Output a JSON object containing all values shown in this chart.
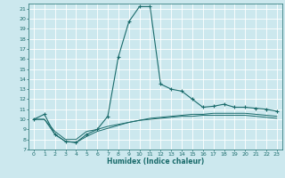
{
  "xlabel": "Humidex (Indice chaleur)",
  "xlim": [
    -0.5,
    23.5
  ],
  "ylim": [
    7,
    21.5
  ],
  "x_ticks": [
    0,
    1,
    2,
    3,
    4,
    5,
    6,
    7,
    8,
    9,
    10,
    11,
    12,
    13,
    14,
    15,
    16,
    17,
    18,
    19,
    20,
    21,
    22,
    23
  ],
  "y_ticks": [
    7,
    8,
    9,
    10,
    11,
    12,
    13,
    14,
    15,
    16,
    17,
    18,
    19,
    20,
    21
  ],
  "background_color": "#cce8ee",
  "grid_color": "#ffffff",
  "line_color": "#1a6b6b",
  "line1_x": [
    0,
    1,
    2,
    3,
    4,
    5,
    6,
    7,
    8,
    9,
    10,
    11,
    12,
    13,
    14,
    15,
    16,
    17,
    18,
    19,
    20,
    21,
    22,
    23
  ],
  "line1_y": [
    10,
    10.5,
    8.5,
    7.8,
    7.7,
    8.5,
    9.0,
    10.3,
    16.2,
    19.7,
    21.2,
    21.2,
    13.5,
    13.0,
    12.8,
    12.0,
    11.2,
    11.3,
    11.5,
    11.2,
    11.2,
    11.1,
    11.0,
    10.8
  ],
  "line2_x": [
    0,
    1,
    2,
    3,
    4,
    5,
    6,
    7,
    8,
    9,
    10,
    11,
    12,
    13,
    14,
    15,
    16,
    17,
    18,
    19,
    20,
    21,
    22,
    23
  ],
  "line2_y": [
    10,
    10,
    8.5,
    7.8,
    7.7,
    8.3,
    8.8,
    9.1,
    9.4,
    9.7,
    9.9,
    10.1,
    10.2,
    10.3,
    10.4,
    10.5,
    10.5,
    10.6,
    10.6,
    10.6,
    10.6,
    10.5,
    10.4,
    10.3
  ],
  "line3_x": [
    0,
    1,
    2,
    3,
    4,
    5,
    6,
    7,
    8,
    9,
    10,
    11,
    12,
    13,
    14,
    15,
    16,
    17,
    18,
    19,
    20,
    21,
    22,
    23
  ],
  "line3_y": [
    10,
    10,
    8.8,
    8.0,
    8.0,
    8.8,
    9.0,
    9.3,
    9.5,
    9.7,
    9.9,
    10.0,
    10.1,
    10.2,
    10.3,
    10.3,
    10.4,
    10.4,
    10.4,
    10.4,
    10.4,
    10.3,
    10.2,
    10.1
  ]
}
